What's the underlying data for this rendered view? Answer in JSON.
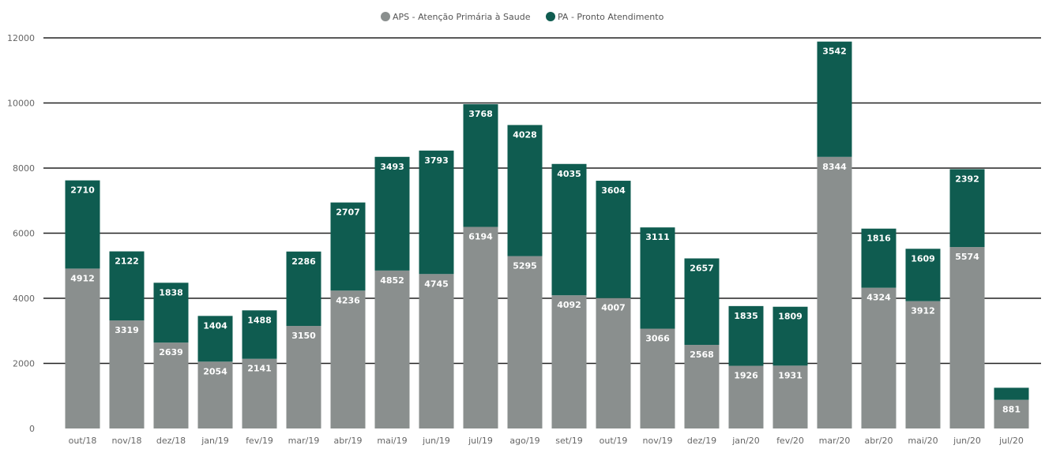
{
  "chart_data": {
    "type": "bar",
    "stacked": true,
    "categories": [
      "out/18",
      "nov/18",
      "dez/18",
      "jan/19",
      "fev/19",
      "mar/19",
      "abr/19",
      "mai/19",
      "jun/19",
      "jul/19",
      "ago/19",
      "set/19",
      "out/19",
      "nov/19",
      "dez/19",
      "jan/20",
      "fev/20",
      "mar/20",
      "abr/20",
      "mai/20",
      "jun/20",
      "jul/20"
    ],
    "series": [
      {
        "name": "APS - Atenção Primária à Saude",
        "color": "#8a8f8e",
        "values": [
          4912,
          3319,
          2639,
          2054,
          2141,
          3150,
          4236,
          4852,
          4745,
          6194,
          5295,
          4092,
          4007,
          3066,
          2568,
          1926,
          1931,
          8344,
          4324,
          3912,
          5574,
          881
        ],
        "labels": [
          "4912",
          "3319",
          "2639",
          "2054",
          "2141",
          "3150",
          "4236",
          "4852",
          "4745",
          "6194",
          "5295",
          "4092",
          "4007",
          "3066",
          "2568",
          "1926",
          "1931",
          "8344",
          "4324",
          "3912",
          "5574",
          "881"
        ]
      },
      {
        "name": "PA - Pronto Atendimento",
        "color": "#0f5c50",
        "values": [
          2710,
          2122,
          1838,
          1404,
          1488,
          2286,
          2707,
          3493,
          3793,
          3768,
          4028,
          4035,
          3604,
          3111,
          2657,
          1835,
          1809,
          3542,
          1816,
          1609,
          2392,
          370
        ],
        "labels": [
          "2710",
          "2122",
          "1838",
          "1404",
          "1488",
          "2286",
          "2707",
          "3493",
          "3793",
          "3768",
          "4028",
          "4035",
          "3604",
          "3111",
          "2657",
          "1835",
          "1809",
          "3542",
          "1816",
          "1609",
          "2392",
          ""
        ]
      }
    ],
    "yticks": [
      "0",
      "2000",
      "4000",
      "6000",
      "8000",
      "10000",
      "12000"
    ],
    "ylim": [
      0,
      12000
    ],
    "grid": true,
    "legend_position": "top-center",
    "title": "",
    "xlabel": "",
    "ylabel": ""
  }
}
